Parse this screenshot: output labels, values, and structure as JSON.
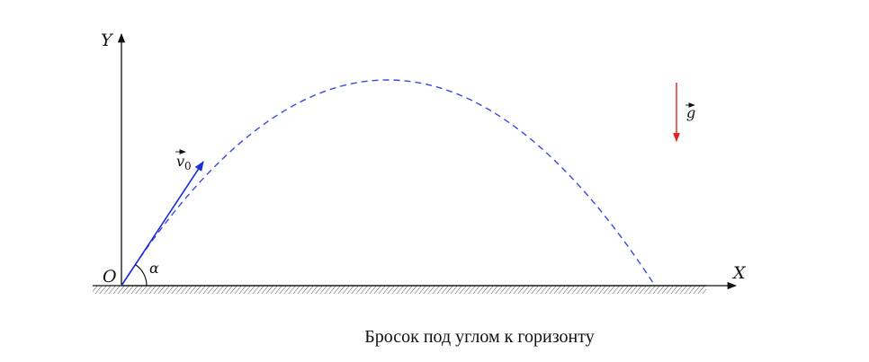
{
  "labels": {
    "y_axis": "Y",
    "x_axis": "X",
    "origin": "O",
    "angle": "α",
    "velocity": "v",
    "velocity_subscript": "0",
    "gravity": "g"
  },
  "caption": "Бросок под углом к горизонту",
  "colors": {
    "axes": "#111111",
    "trajectory": "#3a48e0",
    "velocity_vector": "#1a2fd6",
    "gravity_vector": "#e02020"
  }
}
